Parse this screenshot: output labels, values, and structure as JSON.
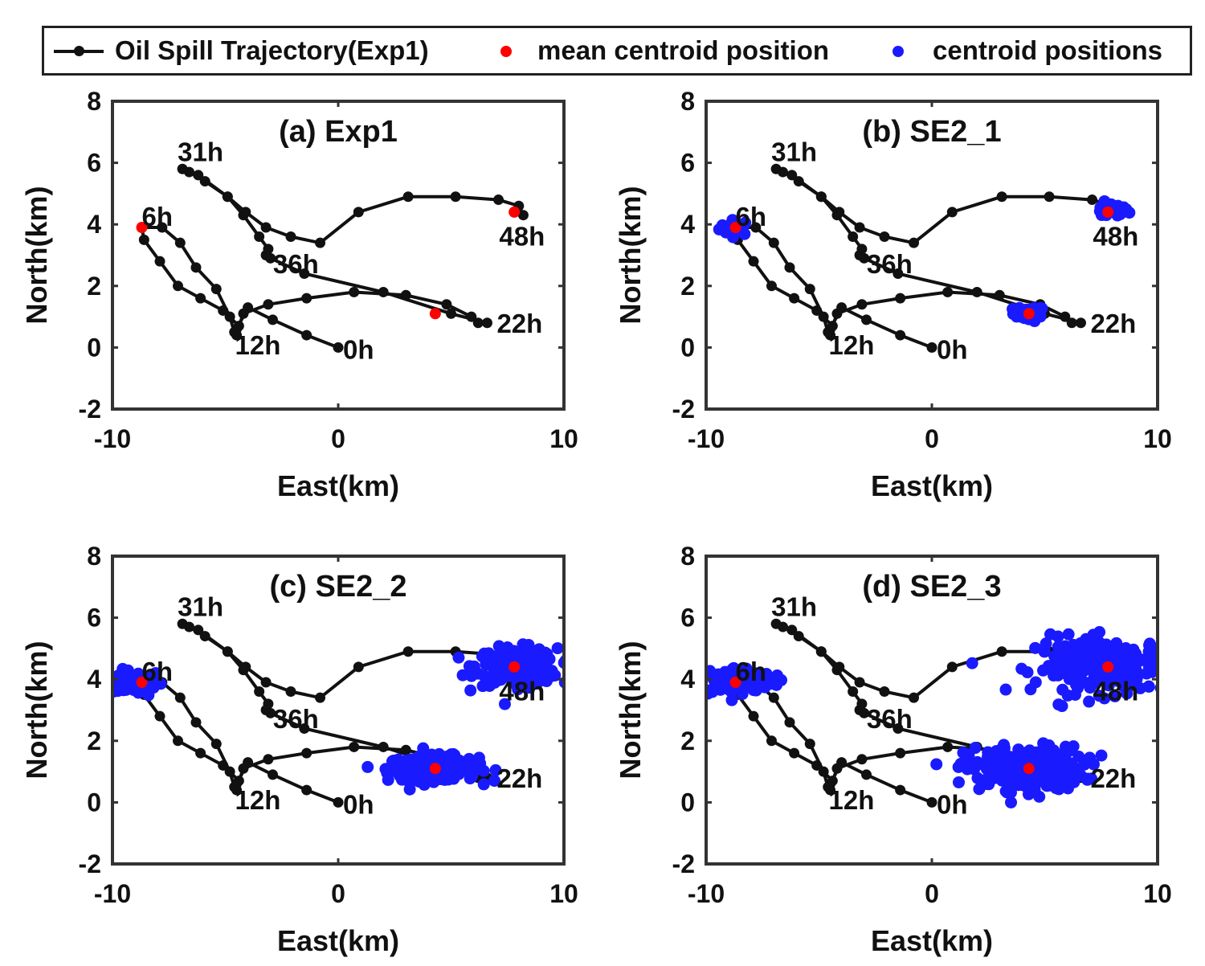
{
  "legend": {
    "trajectory": "Oil Spill Trajectory(Exp1)",
    "mean": "mean centroid position",
    "centroids": "centroid positions"
  },
  "colors": {
    "trajectory": "#111111",
    "mean": "#ff0000",
    "centroids": "#1a1aff"
  },
  "chart_data": {
    "type": "line",
    "xlabel": "East(km)",
    "ylabel": "North(km)",
    "xlim": [
      -10,
      10
    ],
    "ylim": [
      -2,
      8
    ],
    "xticks": [
      -10,
      0,
      10
    ],
    "yticks": [
      -2,
      0,
      2,
      4,
      6,
      8
    ],
    "trajectory": {
      "name": "Oil Spill Trajectory(Exp1)",
      "x": [
        0.0,
        -1.4,
        -2.9,
        -4.0,
        -4.5,
        -4.5,
        -4.6,
        -4.8,
        -5.4,
        -6.3,
        -7.0,
        -7.8,
        -8.7,
        -8.6,
        -7.9,
        -7.1,
        -6.1,
        -5.1,
        -4.4,
        -4.2,
        -3.1,
        -1.4,
        0.7,
        3.0,
        4.8,
        5.9,
        6.2,
        6.6,
        5.0,
        2.0,
        -1.5,
        -3.0,
        -3.2,
        -3.1,
        -3.5,
        -4.2,
        -4.9,
        -6.2,
        -6.9,
        -6.6,
        -5.9,
        -4.9,
        -4.1,
        -3.2,
        -2.1,
        -0.8,
        0.9,
        3.1,
        5.2,
        7.1,
        8.0,
        8.2
      ],
      "y": [
        0.0,
        0.4,
        0.9,
        1.3,
        0.6,
        0.4,
        0.5,
        1.0,
        1.9,
        2.6,
        3.4,
        3.9,
        3.9,
        3.5,
        2.8,
        2.0,
        1.6,
        1.2,
        0.7,
        1.1,
        1.4,
        1.6,
        1.8,
        1.7,
        1.4,
        1.0,
        0.8,
        0.8,
        1.1,
        1.8,
        2.4,
        2.9,
        3.0,
        3.2,
        3.6,
        4.3,
        4.9,
        5.6,
        5.8,
        5.7,
        5.4,
        4.9,
        4.4,
        3.9,
        3.6,
        3.4,
        4.4,
        4.9,
        4.9,
        4.8,
        4.6,
        4.3
      ]
    },
    "time_labels": [
      {
        "label": "0h",
        "x": 0.0,
        "y": 0.0
      },
      {
        "label": "12h",
        "x": -4.5,
        "y": 0.4
      },
      {
        "label": "6h",
        "x": -8.7,
        "y": 3.9
      },
      {
        "label": "22h",
        "x": 6.6,
        "y": 0.8
      },
      {
        "label": "36h",
        "x": -3.1,
        "y": 3.2
      },
      {
        "label": "31h",
        "x": -6.9,
        "y": 5.8
      },
      {
        "label": "48h",
        "x": 8.2,
        "y": 4.3
      }
    ],
    "mean_centroids": {
      "name": "mean centroid position",
      "x": [
        -8.7,
        4.3,
        7.8
      ],
      "y": [
        3.9,
        1.1,
        4.4
      ]
    },
    "panels": [
      {
        "title": "(a) Exp1",
        "centroid_clusters": []
      },
      {
        "title": "(b) SE2_1",
        "centroid_clusters": [
          {
            "center": [
              -8.7,
              3.9
            ],
            "spread": [
              0.35,
              0.12
            ],
            "count": 30
          },
          {
            "center": [
              4.3,
              1.1
            ],
            "spread": [
              0.35,
              0.12
            ],
            "count": 30
          },
          {
            "center": [
              7.9,
              4.45
            ],
            "spread": [
              0.4,
              0.12
            ],
            "count": 30
          }
        ]
      },
      {
        "title": "(c) SE2_2",
        "centroid_clusters": [
          {
            "center": [
              -8.9,
              3.9
            ],
            "spread": [
              0.55,
              0.2
            ],
            "count": 90
          },
          {
            "center": [
              4.2,
              1.1
            ],
            "spread": [
              1.0,
              0.2
            ],
            "count": 220
          },
          {
            "center": [
              7.9,
              4.4
            ],
            "spread": [
              0.9,
              0.3
            ],
            "count": 220
          }
        ]
      },
      {
        "title": "(d) SE2_3",
        "centroid_clusters": [
          {
            "center": [
              -8.7,
              3.95
            ],
            "spread": [
              0.85,
              0.22
            ],
            "count": 130
          },
          {
            "center": [
              4.1,
              1.1
            ],
            "spread": [
              1.3,
              0.35
            ],
            "count": 260
          },
          {
            "center": [
              7.8,
              4.45
            ],
            "spread": [
              1.6,
              0.45
            ],
            "count": 200
          }
        ]
      }
    ]
  }
}
